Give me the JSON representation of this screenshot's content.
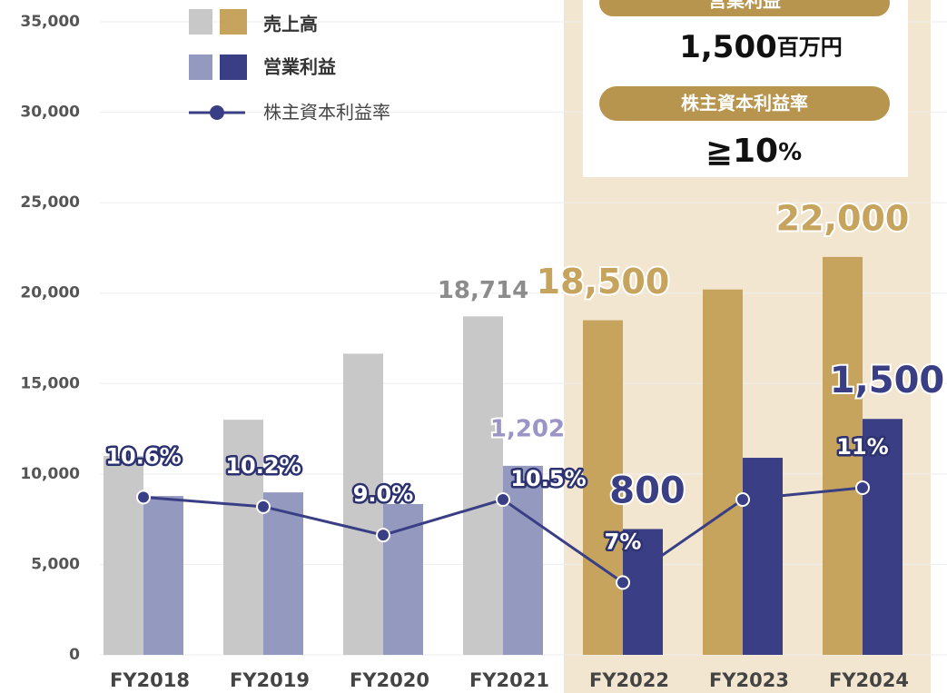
{
  "chart_data": {
    "type": "bar",
    "categories": [
      "FY2018",
      "FY2019",
      "FY2020",
      "FY2021",
      "FY2022",
      "FY2023",
      "FY2024"
    ],
    "series": [
      {
        "name": "売上高",
        "colors": [
          "#c8c8c8",
          "#c8c8c8",
          "#c8c8c8",
          "#c8c8c8",
          "#c6a45e",
          "#c6a45e",
          "#c6a45e"
        ],
        "values": [
          11000,
          13000,
          16650,
          18714,
          18500,
          20200,
          22000
        ],
        "value_labels": [
          null,
          null,
          null,
          "18,714",
          "18,500",
          null,
          "22,000"
        ]
      },
      {
        "name": "営業利益",
        "axis": "y2",
        "colors": [
          "#9499c0",
          "#9499c0",
          "#9499c0",
          "#9499c0",
          "#3a3f85",
          "#3a3f85",
          "#3a3f85"
        ],
        "values": [
          1010,
          1033,
          959,
          1202,
          800,
          1253,
          1500
        ],
        "value_labels": [
          null,
          null,
          null,
          "1,202",
          "800",
          null,
          "1,500"
        ]
      },
      {
        "name": "株主資本利益率",
        "type": "line",
        "axis": "y3",
        "color": "#3a3f85",
        "values": [
          10.6,
          10.2,
          9.0,
          10.5,
          7,
          10.5,
          11
        ],
        "value_labels": [
          "10.6%",
          "10.2%",
          "9.0%",
          "10.5%",
          "7%",
          null,
          "11%"
        ]
      }
    ],
    "ylim": [
      0,
      35000
    ],
    "yticks": [
      0,
      {
        "value": 5000,
        "label": "5,000"
      },
      {
        "value": 10000,
        "label": "10,000"
      },
      {
        "value": 15000,
        "label": "15,000"
      },
      {
        "value": 20000,
        "label": "20,000"
      },
      {
        "value": 25000,
        "label": "25,000"
      },
      {
        "value": 30000,
        "label": "30,000"
      },
      {
        "value": 35000,
        "label": "35,000"
      }
    ],
    "y2lim": [
      0,
      4025
    ],
    "y3lim": [
      3.95,
      30.65
    ],
    "grid": true,
    "annotations": [
      {
        "label": "営業利益",
        "text": "1,500",
        "unit": "百万円"
      },
      {
        "label": "株主資本利益率",
        "text": "≧10",
        "unit": "%"
      }
    ]
  }
}
